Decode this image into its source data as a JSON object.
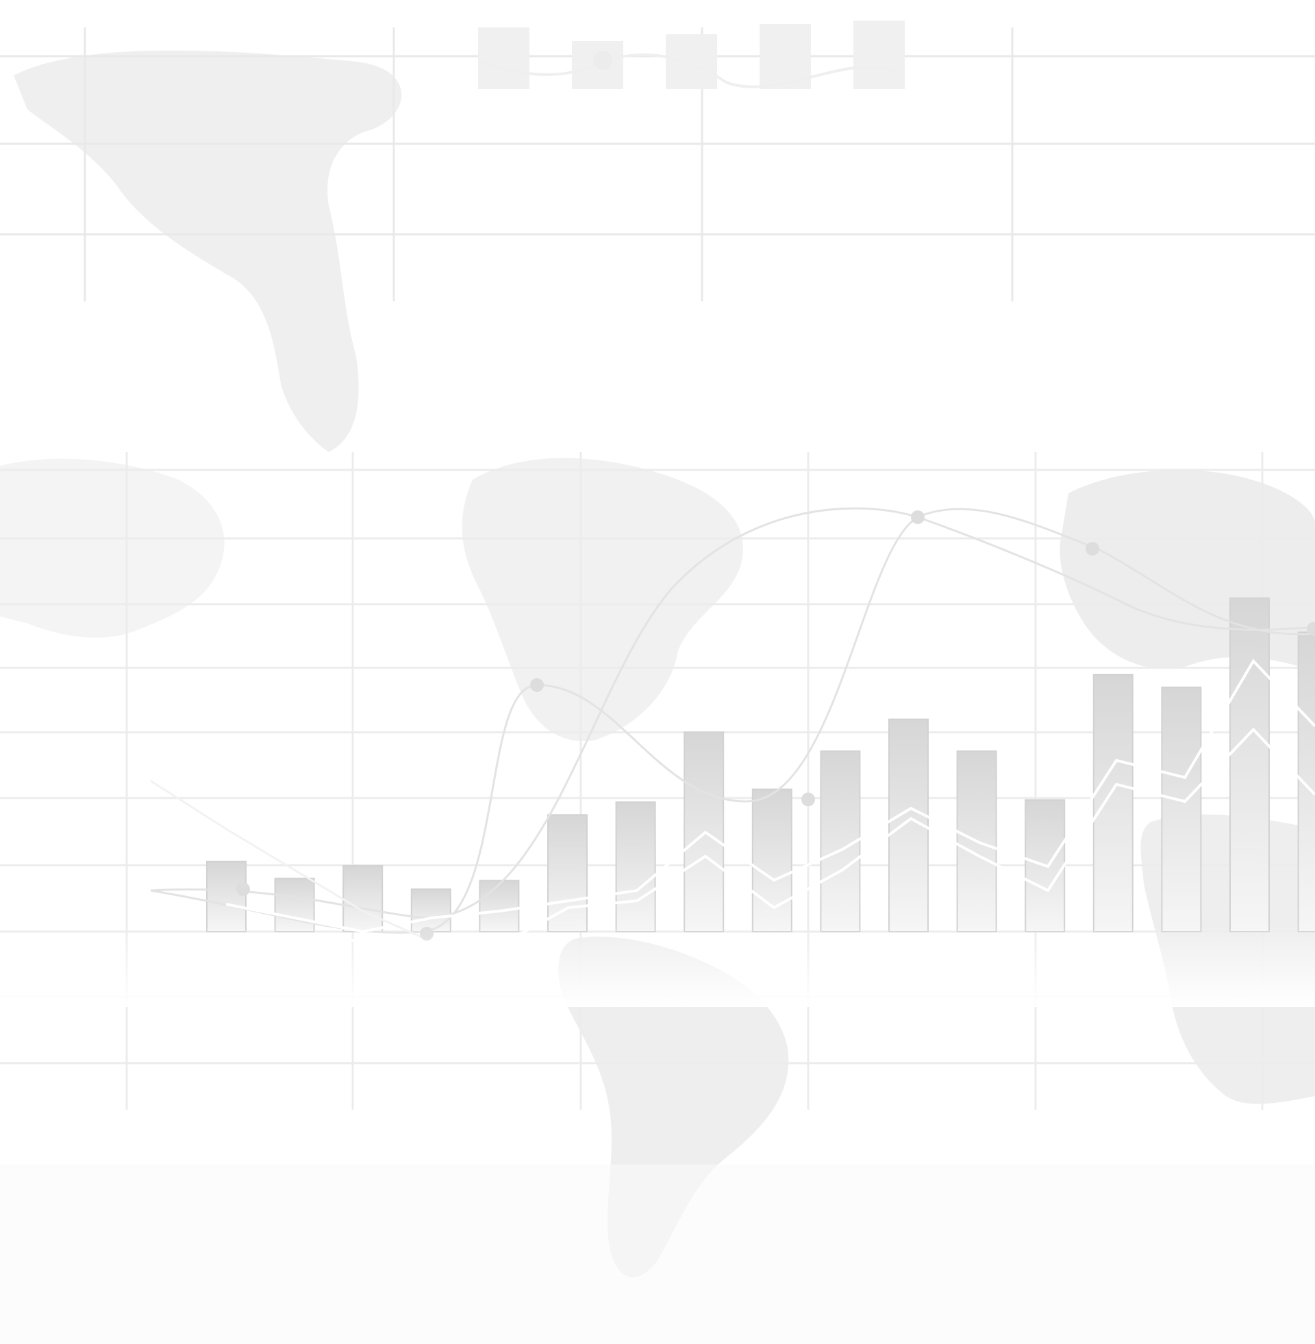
{
  "background": {
    "kind": "decorative-financial-world-map",
    "colors": {
      "base": "#ffffff",
      "map": "#ececec",
      "grid": "#e6e6e6",
      "bar": "#d9d9d9",
      "line": "#e0e0e0",
      "marker": "#dcdcdc",
      "white_line": "#ffffff"
    },
    "bars_lower": [
      0.33,
      0.25,
      0.31,
      0.2,
      0.24,
      0.55,
      0.61,
      0.94,
      0.67,
      0.85,
      1.0,
      0.85,
      0.62,
      1.21,
      1.15,
      1.57,
      1.41
    ],
    "bars_upper": [
      0.9,
      0.7,
      0.8,
      0.95,
      1.0
    ]
  }
}
